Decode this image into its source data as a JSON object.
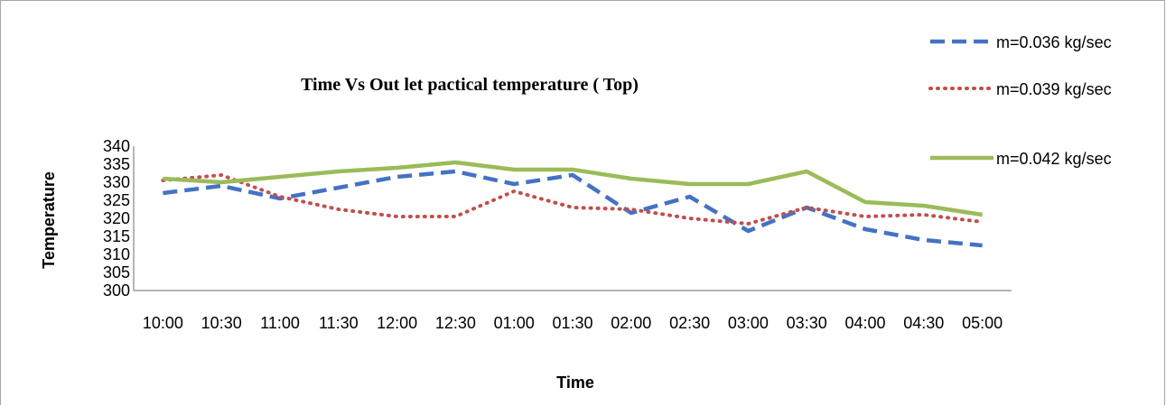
{
  "chart_data": {
    "type": "line",
    "title": "Time Vs Out let pactical temperature ( Top)",
    "xlabel": "Time",
    "ylabel": "Temperature",
    "ylim": [
      300,
      340
    ],
    "yticks": [
      300,
      305,
      310,
      315,
      320,
      325,
      330,
      335,
      340
    ],
    "categories": [
      "10:00",
      "10:30",
      "11:00",
      "11:30",
      "12:00",
      "12:30",
      "01:00",
      "01:30",
      "02:00",
      "02:30",
      "03:00",
      "03:30",
      "04:00",
      "04:30",
      "05:00"
    ],
    "grid": false,
    "legend_position": "right",
    "series": [
      {
        "name": "m=0.036 kg/sec",
        "color": "#4472c4",
        "style": "dashed",
        "values": [
          327,
          329,
          325.5,
          328.5,
          331.5,
          333,
          329.5,
          332,
          321.5,
          326,
          316.5,
          323,
          317,
          314,
          312.5
        ]
      },
      {
        "name": "m=0.039 kg/sec",
        "color": "#c0504d",
        "style": "dotted",
        "values": [
          330.5,
          332,
          326,
          322.5,
          320.5,
          320.5,
          327.5,
          323,
          322.5,
          320,
          318.5,
          323,
          320.5,
          321,
          319
        ]
      },
      {
        "name": "m=0.042 kg/sec",
        "color": "#9bbb59",
        "style": "solid",
        "values": [
          331,
          330,
          331.5,
          333,
          334,
          335.5,
          333.5,
          333.5,
          331,
          329.5,
          329.5,
          333,
          324.5,
          323.5,
          321
        ]
      }
    ]
  }
}
